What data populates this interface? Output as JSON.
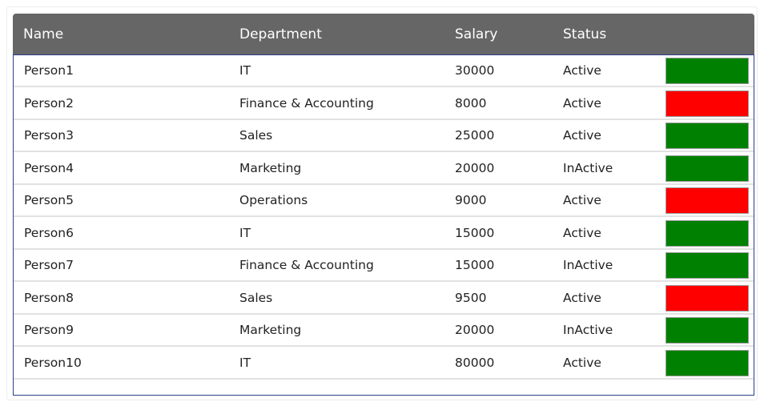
{
  "table": {
    "columns": [
      "Name",
      "Department",
      "Salary",
      "Status"
    ],
    "rows": [
      {
        "name": "Person1",
        "department": "IT",
        "salary": "30000",
        "status": "Active",
        "indicator": "#008000"
      },
      {
        "name": "Person2",
        "department": "Finance & Accounting",
        "salary": "8000",
        "status": "Active",
        "indicator": "#ff0000"
      },
      {
        "name": "Person3",
        "department": "Sales",
        "salary": "25000",
        "status": "Active",
        "indicator": "#008000"
      },
      {
        "name": "Person4",
        "department": "Marketing",
        "salary": "20000",
        "status": "InActive",
        "indicator": "#008000"
      },
      {
        "name": "Person5",
        "department": "Operations",
        "salary": "9000",
        "status": "Active",
        "indicator": "#ff0000"
      },
      {
        "name": "Person6",
        "department": "IT",
        "salary": "15000",
        "status": "Active",
        "indicator": "#008000"
      },
      {
        "name": "Person7",
        "department": "Finance & Accounting",
        "salary": "15000",
        "status": "InActive",
        "indicator": "#008000"
      },
      {
        "name": "Person8",
        "department": "Sales",
        "salary": "9500",
        "status": "Active",
        "indicator": "#ff0000"
      },
      {
        "name": "Person9",
        "department": "Marketing",
        "salary": "20000",
        "status": "InActive",
        "indicator": "#008000"
      },
      {
        "name": "Person10",
        "department": "IT",
        "salary": "80000",
        "status": "Active",
        "indicator": "#008000"
      }
    ]
  },
  "colors": {
    "header_bg": "#666666",
    "body_border": "#2b3f8a",
    "good": "#008000",
    "bad": "#ff0000"
  }
}
